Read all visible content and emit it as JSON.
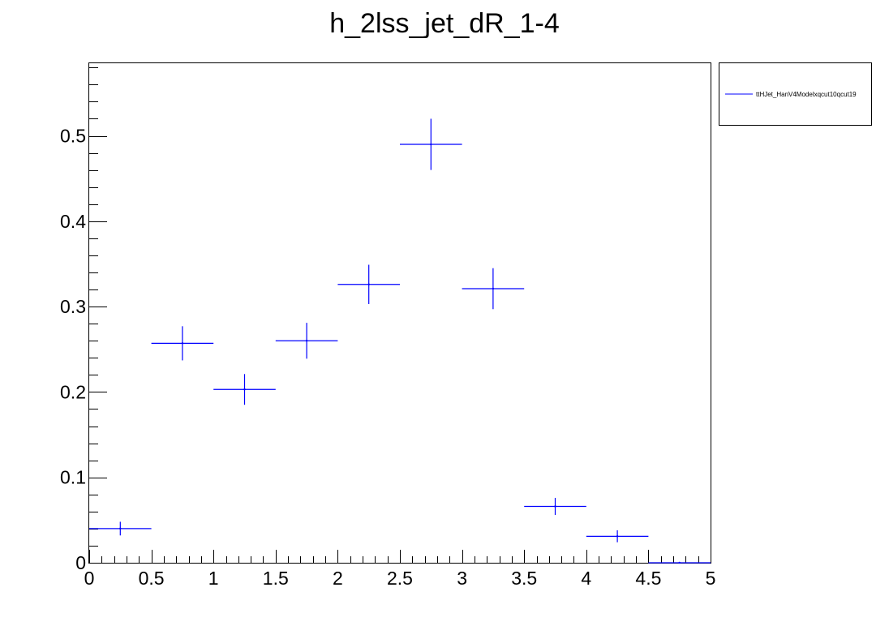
{
  "chart_data": {
    "type": "scatter",
    "title": "h_2lss_jet_dR_1-4",
    "xlabel": "",
    "ylabel": "",
    "xlim": [
      0,
      5
    ],
    "ylim": [
      0,
      0.585
    ],
    "x_ticks": [
      "0",
      "0.5",
      "1",
      "1.5",
      "2",
      "2.5",
      "3",
      "3.5",
      "4",
      "4.5",
      "5"
    ],
    "y_ticks": [
      "0",
      "0.1",
      "0.2",
      "0.3",
      "0.4",
      "0.5"
    ],
    "grid": false,
    "legend_position": "top-right, outside plot",
    "series": [
      {
        "name": "ttHJet_HanV4Modelxqcut10qcut19",
        "color": "#0000ff",
        "bin_width": 0.5,
        "x": [
          0.25,
          0.75,
          1.25,
          1.75,
          2.25,
          2.75,
          3.25,
          3.75,
          4.25,
          4.75
        ],
        "y": [
          0.04,
          0.257,
          0.203,
          0.26,
          0.326,
          0.49,
          0.321,
          0.066,
          0.031,
          0.0
        ],
        "yerr": [
          0.008,
          0.02,
          0.018,
          0.021,
          0.023,
          0.03,
          0.024,
          0.01,
          0.007,
          0.0
        ]
      }
    ]
  }
}
